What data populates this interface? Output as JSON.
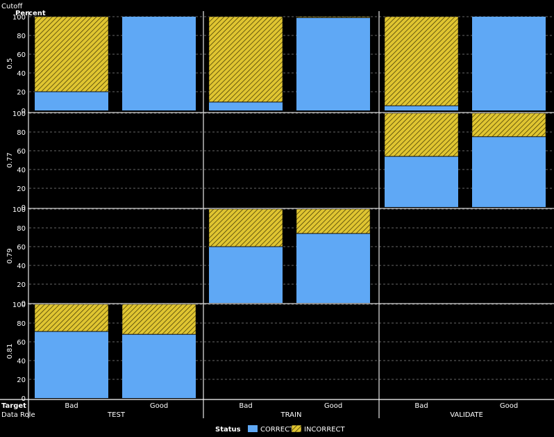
{
  "chart_data": {
    "type": "bar",
    "stacked": true,
    "row_axis_label": "Cutoff",
    "ylabel": "Percent",
    "ylim": [
      0,
      100
    ],
    "yticks": [
      0,
      20,
      40,
      60,
      80,
      100
    ],
    "grid": true,
    "xlabel_inner": "Target",
    "xlabel_outer": "Data Role",
    "data_roles": [
      "TEST",
      "TRAIN",
      "VALIDATE"
    ],
    "targets": [
      "Bad",
      "Good"
    ],
    "cutoffs": [
      "0.5",
      "0.77",
      "0.79",
      "0.81"
    ],
    "legend": {
      "title": "Status",
      "position": "bottom",
      "items": [
        {
          "label": "CORRECT",
          "color": "#5fa8f5",
          "pattern": "solid"
        },
        {
          "label": "INCORRECT",
          "color": "#e0c531",
          "pattern": "diagonal-hatch"
        }
      ]
    },
    "cells": [
      {
        "cutoff": "0.5",
        "role": "TEST",
        "target": "Bad",
        "correct": 20,
        "incorrect": 80
      },
      {
        "cutoff": "0.5",
        "role": "TEST",
        "target": "Good",
        "correct": 100,
        "incorrect": 0
      },
      {
        "cutoff": "0.5",
        "role": "TRAIN",
        "target": "Bad",
        "correct": 9,
        "incorrect": 91
      },
      {
        "cutoff": "0.5",
        "role": "TRAIN",
        "target": "Good",
        "correct": 99,
        "incorrect": 1
      },
      {
        "cutoff": "0.5",
        "role": "VALIDATE",
        "target": "Bad",
        "correct": 5,
        "incorrect": 95
      },
      {
        "cutoff": "0.5",
        "role": "VALIDATE",
        "target": "Good",
        "correct": 100,
        "incorrect": 0
      },
      {
        "cutoff": "0.77",
        "role": "VALIDATE",
        "target": "Bad",
        "correct": 54,
        "incorrect": 46
      },
      {
        "cutoff": "0.77",
        "role": "VALIDATE",
        "target": "Good",
        "correct": 75,
        "incorrect": 25
      },
      {
        "cutoff": "0.79",
        "role": "TRAIN",
        "target": "Bad",
        "correct": 60,
        "incorrect": 40
      },
      {
        "cutoff": "0.79",
        "role": "TRAIN",
        "target": "Good",
        "correct": 74,
        "incorrect": 26
      },
      {
        "cutoff": "0.81",
        "role": "TEST",
        "target": "Bad",
        "correct": 71,
        "incorrect": 29
      },
      {
        "cutoff": "0.81",
        "role": "TEST",
        "target": "Good",
        "correct": 68,
        "incorrect": 32
      }
    ]
  }
}
